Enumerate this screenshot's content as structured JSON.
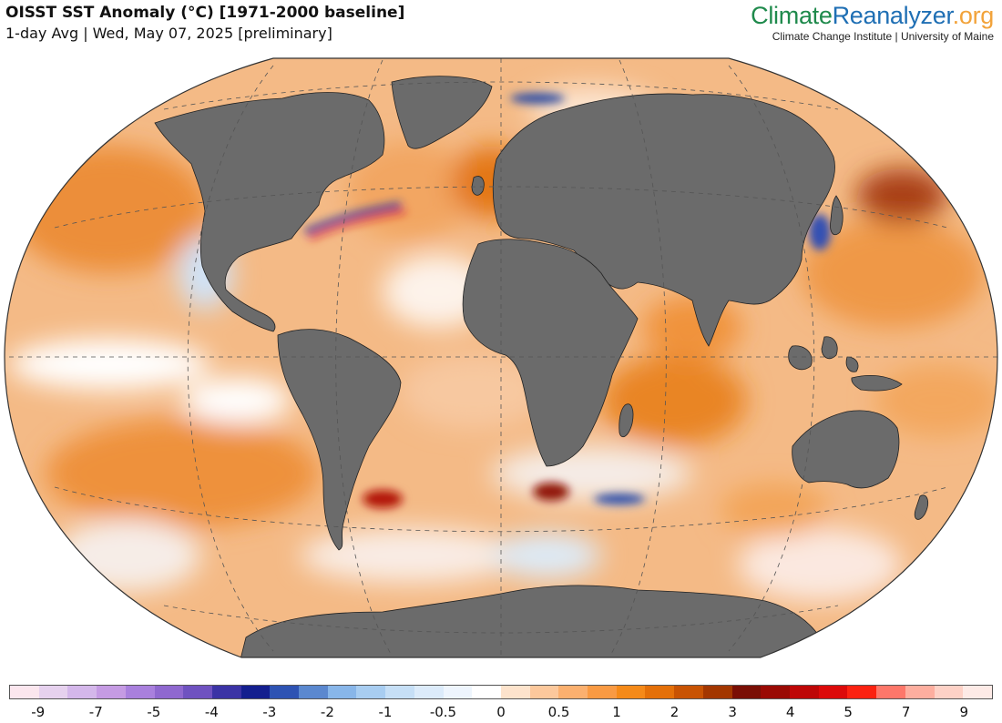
{
  "header": {
    "title": "OISST SST Anomaly (°C) [1971-2000 baseline]",
    "subtitle": "1-day Avg | Wed, May 07, 2025 [preliminary]"
  },
  "brand": {
    "logo_part1": "Climate",
    "logo_part2": "Reanalyzer",
    "logo_part3": ".org",
    "institution": "Climate Change Institute | University of Maine"
  },
  "map": {
    "projection": "Winkel Tripel",
    "ocean_base_color": "#f4b882",
    "land_color": "#6b6b6b"
  },
  "legend": {
    "colors": [
      "#fbe6ee",
      "#e6d1ee",
      "#d4b7ea",
      "#c59be3",
      "#a980dd",
      "#8f68cf",
      "#6f52c0",
      "#3b33a5",
      "#141f8f",
      "#2e53b3",
      "#5b88cf",
      "#88b6e9",
      "#a8cdf1",
      "#c6dff6",
      "#dcebfa",
      "#eef5fd",
      "#ffffff",
      "#fde3cc",
      "#fcc89c",
      "#fbb06f",
      "#f99a43",
      "#f58a19",
      "#e47009",
      "#c85303",
      "#a33700",
      "#7a0f05",
      "#9a0a04",
      "#be0707",
      "#dc0a0a",
      "#fb2211",
      "#fd776a",
      "#fdae9f",
      "#fdd1c6",
      "#fdeae6"
    ],
    "ticks": [
      "-9",
      "-7",
      "-5",
      "-4",
      "-3",
      "-2",
      "-1",
      "-0.5",
      "0",
      "0.5",
      "1",
      "2",
      "3",
      "4",
      "5",
      "7",
      "9"
    ]
  }
}
